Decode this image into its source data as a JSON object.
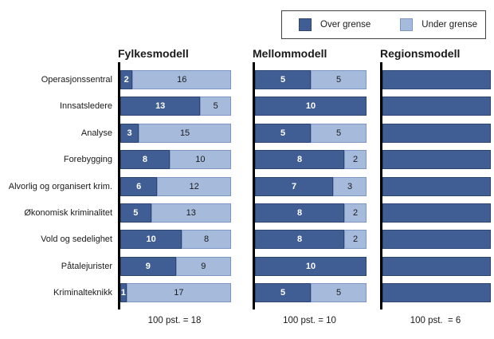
{
  "chart_data": {
    "type": "bar",
    "variant": "horizontal-stacked",
    "legend_items": [
      {
        "label": "Over grense",
        "key": "over"
      },
      {
        "label": "Under grense",
        "key": "under"
      }
    ],
    "colors": {
      "over": "#405e94",
      "over_border": "#2c4571",
      "under": "#a6bbdc",
      "under_border": "#7e96c2",
      "axis": "#000000"
    },
    "categories": [
      "Operasjonssentral",
      "Innsatsledere",
      "Analyse",
      "Forebygging",
      "Alvorlig og organisert krim.",
      "Økonomisk kriminalitet",
      "Vold og sedelighet",
      "Påtalejurister",
      "Kriminalteknikk"
    ],
    "panels": [
      {
        "title": "Fylkesmodell",
        "total": 18,
        "footnote": "100 pst. = 18",
        "show_value_labels": true,
        "series": [
          {
            "name": "Over grense",
            "values": [
              2,
              13,
              3,
              8,
              6,
              5,
              10,
              9,
              1
            ]
          },
          {
            "name": "Under grense",
            "values": [
              16,
              5,
              15,
              10,
              12,
              13,
              8,
              9,
              17
            ]
          }
        ]
      },
      {
        "title": "Mellommodell",
        "total": 10,
        "footnote": "100 pst. = 10",
        "show_value_labels": true,
        "series": [
          {
            "name": "Over grense",
            "values": [
              5,
              10,
              5,
              8,
              7,
              8,
              8,
              10,
              5
            ]
          },
          {
            "name": "Under grense",
            "values": [
              5,
              0,
              5,
              2,
              3,
              2,
              2,
              0,
              5
            ]
          }
        ]
      },
      {
        "title": "Regionsmodell",
        "total": 6,
        "footnote": "100 pst.  = 6",
        "show_value_labels": false,
        "series": [
          {
            "name": "Over grense",
            "values": [
              6,
              6,
              6,
              6,
              6,
              6,
              6,
              6,
              6
            ]
          },
          {
            "name": "Under grense",
            "values": [
              0,
              0,
              0,
              0,
              0,
              0,
              0,
              0,
              0
            ]
          }
        ]
      }
    ]
  }
}
